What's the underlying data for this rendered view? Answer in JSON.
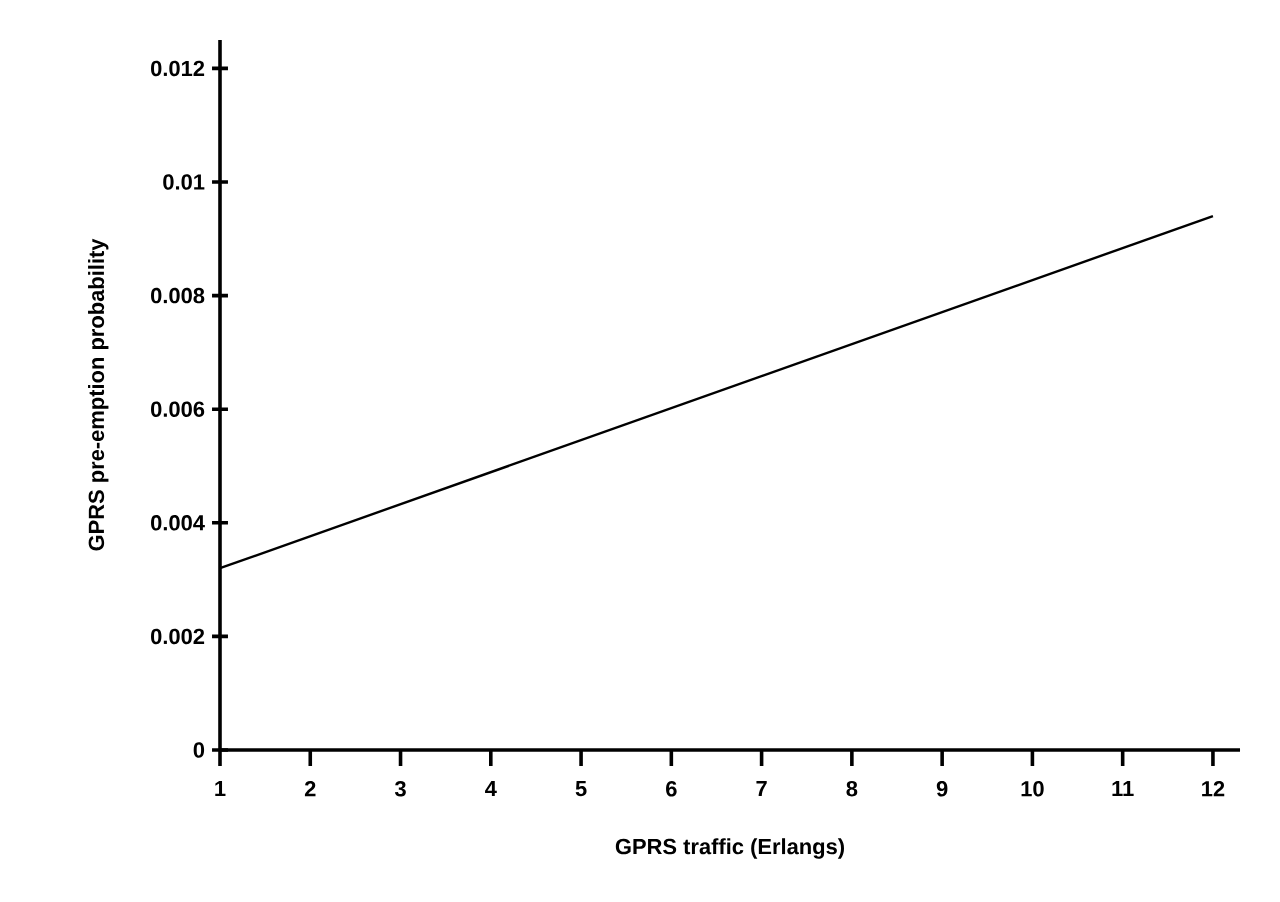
{
  "chart_data": {
    "type": "line",
    "xlabel": "GPRS traffic (Erlangs)",
    "ylabel": "GPRS pre-emption probability",
    "x": [
      1,
      12
    ],
    "series": [
      {
        "color": "#000000",
        "values": [
          0.0032,
          0.0094
        ]
      }
    ],
    "xlim": [
      1,
      12.3
    ],
    "ylim": [
      0,
      0.0125
    ],
    "xticks": [
      1,
      2,
      3,
      4,
      5,
      6,
      7,
      8,
      9,
      10,
      11,
      12
    ],
    "yticks": [
      0,
      0.002,
      0.004,
      0.006,
      0.008,
      0.01,
      0.012
    ],
    "grid": false,
    "marker": "none",
    "line_style": "solid"
  }
}
